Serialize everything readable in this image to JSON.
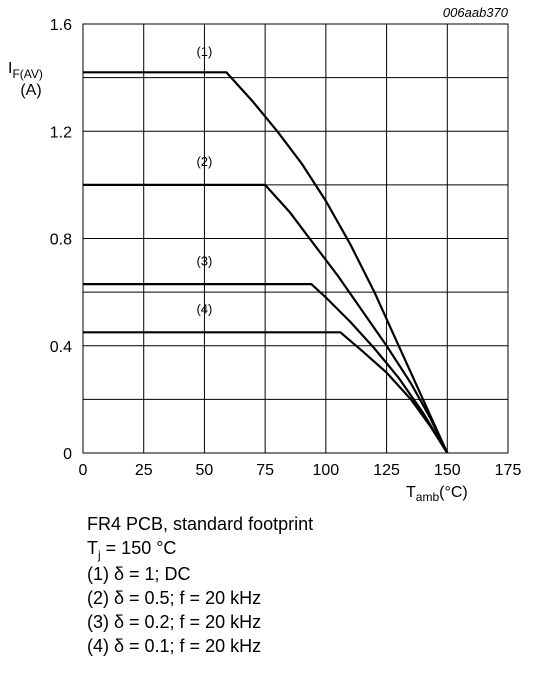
{
  "chart_data": {
    "type": "line",
    "figure_id": "006aab370",
    "ylabel": {
      "main": "I",
      "sub": "F(AV)",
      "unit": "(A)"
    },
    "xlabel": {
      "main": "T",
      "sub": "amb",
      "unit": "(°C)"
    },
    "xlim": [
      0,
      175
    ],
    "ylim": [
      0,
      1.6
    ],
    "x_ticks": [
      0,
      25,
      50,
      75,
      100,
      125,
      150,
      175
    ],
    "y_ticks": [
      0,
      0.4,
      0.8,
      1.2,
      1.6
    ],
    "x_tick_labels": [
      "0",
      "25",
      "50",
      "75",
      "100",
      "125",
      "150",
      "175"
    ],
    "y_tick_labels": [
      "0",
      "0.4",
      "0.8",
      "1.2",
      "1.6"
    ],
    "grid": true,
    "series": [
      {
        "name": "(1)",
        "label_at": [
          50,
          1.48
        ],
        "points": [
          [
            0,
            1.42
          ],
          [
            59,
            1.42
          ],
          [
            70,
            1.31
          ],
          [
            80,
            1.2
          ],
          [
            90,
            1.08
          ],
          [
            100,
            0.94
          ],
          [
            110,
            0.78
          ],
          [
            120,
            0.6
          ],
          [
            130,
            0.4
          ],
          [
            140,
            0.2
          ],
          [
            150,
            0
          ]
        ]
      },
      {
        "name": "(2)",
        "label_at": [
          50,
          1.07
        ],
        "points": [
          [
            0,
            1.0
          ],
          [
            75,
            1.0
          ],
          [
            85,
            0.9
          ],
          [
            95,
            0.78
          ],
          [
            105,
            0.66
          ],
          [
            115,
            0.53
          ],
          [
            125,
            0.4
          ],
          [
            135,
            0.26
          ],
          [
            143,
            0.13
          ],
          [
            150,
            0
          ]
        ]
      },
      {
        "name": "(3)",
        "label_at": [
          50,
          0.7
        ],
        "points": [
          [
            0,
            0.63
          ],
          [
            94,
            0.63
          ],
          [
            100,
            0.58
          ],
          [
            110,
            0.49
          ],
          [
            120,
            0.39
          ],
          [
            130,
            0.28
          ],
          [
            140,
            0.15
          ],
          [
            150,
            0
          ]
        ]
      },
      {
        "name": "(4)",
        "label_at": [
          50,
          0.52
        ],
        "points": [
          [
            0,
            0.45
          ],
          [
            106,
            0.45
          ],
          [
            115,
            0.38
          ],
          [
            125,
            0.3
          ],
          [
            135,
            0.2
          ],
          [
            143,
            0.1
          ],
          [
            150,
            0
          ]
        ]
      }
    ]
  },
  "notes": {
    "line1": "FR4 PCB, standard footprint",
    "line2_main": "T",
    "line2_sub": "j",
    "line2_rest": " = 150 °C",
    "line3": "(1) δ = 1; DC",
    "line4": "(2) δ = 0.5; f = 20 kHz",
    "line5": "(3) δ = 0.2; f = 20 kHz",
    "line6": "(4) δ = 0.1; f = 20 kHz"
  }
}
